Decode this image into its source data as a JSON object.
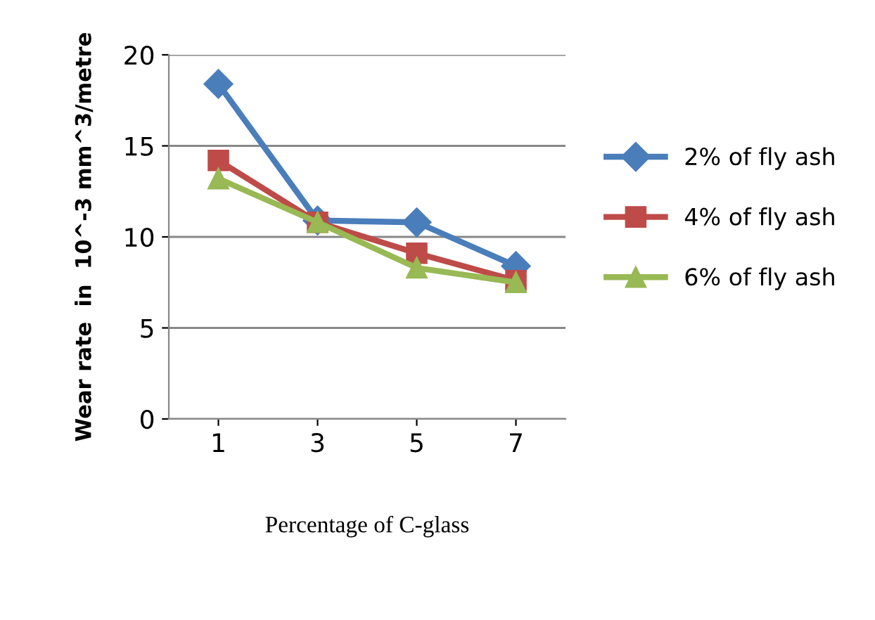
{
  "chart_data": {
    "type": "line",
    "categories": [
      "1",
      "3",
      "5",
      "7"
    ],
    "xlabel": "Percentage of C-glass",
    "ylabel": "Wear rate  in  10^-3 mm^3/metre",
    "ylim": [
      0,
      20
    ],
    "yticks": [
      0,
      5,
      10,
      15,
      20
    ],
    "grid": "y",
    "legend": "right",
    "series": [
      {
        "name": "2% of fly ash",
        "color": "#4a7ebb",
        "marker": "diamond",
        "values": [
          18.4,
          10.9,
          10.8,
          8.4
        ]
      },
      {
        "name": "4% of fly ash",
        "color": "#be4b48",
        "marker": "square",
        "values": [
          14.2,
          10.8,
          9.1,
          7.6
        ]
      },
      {
        "name": "6% of fly ash",
        "color": "#98b954",
        "marker": "triangle",
        "values": [
          13.2,
          10.8,
          8.3,
          7.5
        ]
      }
    ]
  }
}
